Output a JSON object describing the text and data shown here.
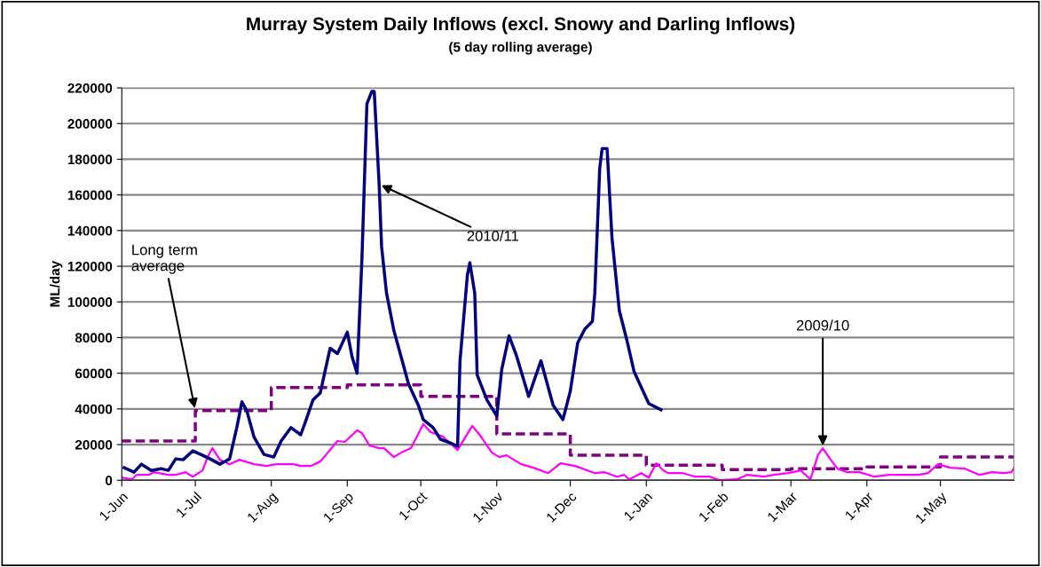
{
  "chart_data": {
    "type": "line",
    "title": "Murray System Daily Inflows (excl. Snowy and Darling Inflows)",
    "subtitle": "(5 day rolling average)",
    "ylabel": "ML/day",
    "xlim": [
      "2010-06-01",
      "2011-05-31"
    ],
    "xticks": [
      {
        "value": "2010-06-01",
        "label": "1-Jun"
      },
      {
        "value": "2010-07-01",
        "label": "1-Jul"
      },
      {
        "value": "2010-08-01",
        "label": "1-Aug"
      },
      {
        "value": "2010-09-01",
        "label": "1-Sep"
      },
      {
        "value": "2010-10-01",
        "label": "1-Oct"
      },
      {
        "value": "2010-11-01",
        "label": "1-Nov"
      },
      {
        "value": "2010-12-01",
        "label": "1-Dec"
      },
      {
        "value": "2011-01-01",
        "label": "1-Jan"
      },
      {
        "value": "2011-02-01",
        "label": "1-Feb"
      },
      {
        "value": "2011-03-01",
        "label": "1-Mar"
      },
      {
        "value": "2011-04-01",
        "label": "1-Apr"
      },
      {
        "value": "2011-05-01",
        "label": "1-May"
      }
    ],
    "ylim": [
      0,
      220000
    ],
    "yticks": [
      0,
      20000,
      40000,
      60000,
      80000,
      100000,
      120000,
      140000,
      160000,
      180000,
      200000,
      220000
    ],
    "grid": "y",
    "legend": false,
    "series": [
      {
        "type": "step",
        "line_style": "dashed",
        "color": "#800080",
        "x": [
          "2010-06-01",
          "2010-07-01",
          "2010-08-01",
          "2010-09-01",
          "2010-10-01",
          "2010-11-01",
          "2010-12-01",
          "2011-01-01",
          "2011-02-01",
          "2011-03-01",
          "2011-04-01",
          "2011-05-01",
          "2011-05-31"
        ],
        "values": [
          22000,
          39000,
          52000,
          53500,
          47000,
          26000,
          14000,
          8500,
          6000,
          6500,
          7500,
          13000,
          13000
        ]
      },
      {
        "color": "#ff00ff",
        "x": [
          "2010-06-01",
          "2010-06-05",
          "2010-06-07",
          "2010-06-12",
          "2010-06-14",
          "2010-06-20",
          "2010-06-23",
          "2010-06-27",
          "2010-06-30",
          "2010-07-04",
          "2010-07-06",
          "2010-07-08",
          "2010-07-11",
          "2010-07-15",
          "2010-07-19",
          "2010-07-25",
          "2010-07-30",
          "2010-08-03",
          "2010-08-10",
          "2010-08-13",
          "2010-08-17",
          "2010-08-21",
          "2010-08-25",
          "2010-08-28",
          "2010-08-31",
          "2010-09-05",
          "2010-09-07",
          "2010-09-10",
          "2010-09-14",
          "2010-09-16",
          "2010-09-20",
          "2010-09-23",
          "2010-09-27",
          "2010-10-02",
          "2010-10-05",
          "2010-10-10",
          "2010-10-16",
          "2010-10-22",
          "2010-10-25",
          "2010-10-30",
          "2010-11-02",
          "2010-11-05",
          "2010-11-11",
          "2010-11-16",
          "2010-11-22",
          "2010-11-27",
          "2010-12-03",
          "2010-12-11",
          "2010-12-15",
          "2010-12-20",
          "2010-12-23",
          "2010-12-25",
          "2010-12-30",
          "2011-01-02",
          "2011-01-05",
          "2011-01-08",
          "2011-01-10",
          "2011-01-16",
          "2011-01-21",
          "2011-01-27",
          "2011-01-31",
          "2011-02-07",
          "2011-02-11",
          "2011-02-18",
          "2011-02-22",
          "2011-02-28",
          "2011-03-05",
          "2011-03-09",
          "2011-03-12",
          "2011-03-14",
          "2011-03-17",
          "2011-03-20",
          "2011-03-24",
          "2011-03-29",
          "2011-04-04",
          "2011-04-10",
          "2011-04-16",
          "2011-04-22",
          "2011-04-26",
          "2011-04-30",
          "2011-05-05",
          "2011-05-11",
          "2011-05-17",
          "2011-05-22",
          "2011-05-27",
          "2011-05-30",
          "2011-05-31"
        ],
        "values": [
          1500,
          500,
          3000,
          3000,
          4500,
          3000,
          3000,
          4500,
          2000,
          5500,
          13000,
          18000,
          11500,
          9000,
          11500,
          9000,
          8000,
          9000,
          9000,
          8000,
          8000,
          10500,
          17000,
          22000,
          21500,
          28000,
          26500,
          19500,
          18000,
          18000,
          13000,
          15500,
          18000,
          31500,
          27000,
          24500,
          17000,
          30500,
          25500,
          15500,
          13000,
          14000,
          9000,
          7000,
          4000,
          9500,
          8000,
          4000,
          4500,
          2000,
          3000,
          500,
          4000,
          1500,
          9500,
          5500,
          4000,
          4000,
          2000,
          2000,
          0,
          500,
          3000,
          2000,
          3000,
          4000,
          5500,
          500,
          14000,
          18000,
          12000,
          6500,
          4500,
          4500,
          2000,
          3000,
          3000,
          3000,
          4000,
          9000,
          7000,
          6500,
          3000,
          4500,
          4000,
          4500,
          7000
        ]
      },
      {
        "color": "#000080",
        "x": [
          "2010-06-02",
          "2010-06-06",
          "2010-06-09",
          "2010-06-13",
          "2010-06-17",
          "2010-06-20",
          "2010-06-23",
          "2010-06-26",
          "2010-06-30",
          "2010-07-04",
          "2010-07-07",
          "2010-07-11",
          "2010-07-15",
          "2010-07-18",
          "2010-07-20",
          "2010-07-22",
          "2010-07-25",
          "2010-07-29",
          "2010-08-02",
          "2010-08-05",
          "2010-08-09",
          "2010-08-13",
          "2010-08-15",
          "2010-08-18",
          "2010-08-21",
          "2010-08-25",
          "2010-08-28",
          "2010-09-01",
          "2010-09-03",
          "2010-09-05",
          "2010-09-07",
          "2010-09-09",
          "2010-09-11",
          "2010-09-12",
          "2010-09-14",
          "2010-09-15",
          "2010-09-17",
          "2010-09-20",
          "2010-09-23",
          "2010-09-26",
          "2010-09-30",
          "2010-10-02",
          "2010-10-06",
          "2010-10-09",
          "2010-10-13",
          "2010-10-16",
          "2010-10-17",
          "2010-10-20",
          "2010-10-21",
          "2010-10-23",
          "2010-10-24",
          "2010-10-28",
          "2010-11-01",
          "2010-11-03",
          "2010-11-06",
          "2010-11-09",
          "2010-11-14",
          "2010-11-19",
          "2010-11-24",
          "2010-11-28",
          "2010-12-01",
          "2010-12-04",
          "2010-12-07",
          "2010-12-10",
          "2010-12-11",
          "2010-12-13",
          "2010-12-14",
          "2010-12-16",
          "2010-12-18",
          "2010-12-21",
          "2010-12-24",
          "2010-12-27",
          "2010-12-30",
          "2011-01-02",
          "2011-01-07"
        ],
        "values": [
          7000,
          4500,
          9000,
          5500,
          6500,
          5500,
          12000,
          11500,
          16500,
          14000,
          12000,
          9000,
          12000,
          30000,
          44000,
          39000,
          24000,
          14500,
          13000,
          22000,
          29500,
          25500,
          33000,
          45000,
          49000,
          74000,
          71000,
          83000,
          69000,
          60000,
          125000,
          211000,
          218000,
          218000,
          166000,
          131000,
          105000,
          84000,
          69000,
          54000,
          42000,
          34000,
          29500,
          23000,
          21000,
          19000,
          67000,
          115000,
          122000,
          105000,
          59000,
          45000,
          36000,
          62000,
          81000,
          70000,
          47000,
          67000,
          42000,
          34000,
          50000,
          77000,
          85000,
          89000,
          105000,
          175000,
          186000,
          186000,
          136000,
          95000,
          79000,
          61000,
          52000,
          43000,
          39500
        ]
      }
    ],
    "annotations": [
      {
        "text": "Long term\naverage",
        "x": "2010-07-01",
        "y": 39000
      },
      {
        "text": "2010/11",
        "x": "2010-09-14",
        "y": 166000
      },
      {
        "text": "2009/10",
        "x": "2011-03-14",
        "y": 18000
      }
    ]
  }
}
